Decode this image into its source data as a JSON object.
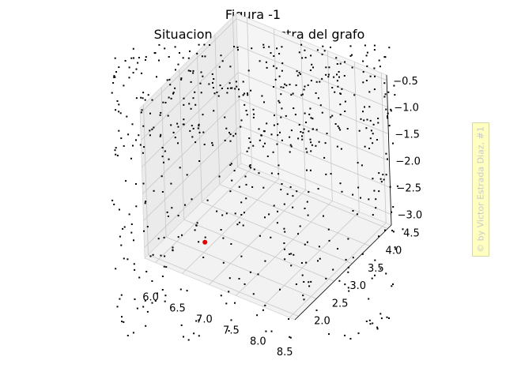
{
  "chart_data": {
    "type": "scatter",
    "suptitle": "Figura -1",
    "title": "Situacion de la muestra del grafo",
    "axes": {
      "x": {
        "ticks": [
          "6.0",
          "6.5",
          "7.0",
          "7.5",
          "8.0",
          "8.5"
        ],
        "range": [
          5.8,
          8.6
        ]
      },
      "y": {
        "ticks": [
          "2.0",
          "2.5",
          "3.0",
          "3.5",
          "4.0",
          "4.5"
        ],
        "range": [
          1.9,
          4.6
        ]
      },
      "z": {
        "ticks": [
          "−3.0",
          "−2.5",
          "−2.0",
          "−1.5",
          "−1.0",
          "−0.5"
        ],
        "range": [
          -3.2,
          -0.4
        ]
      }
    },
    "grid": true,
    "highlight_point": {
      "x": 6.6,
      "y": 2.4,
      "z": -2.9,
      "color": "#e00000"
    },
    "point_color": "#000000",
    "watermark": "© by Victor Estrada Diaz, #1"
  }
}
